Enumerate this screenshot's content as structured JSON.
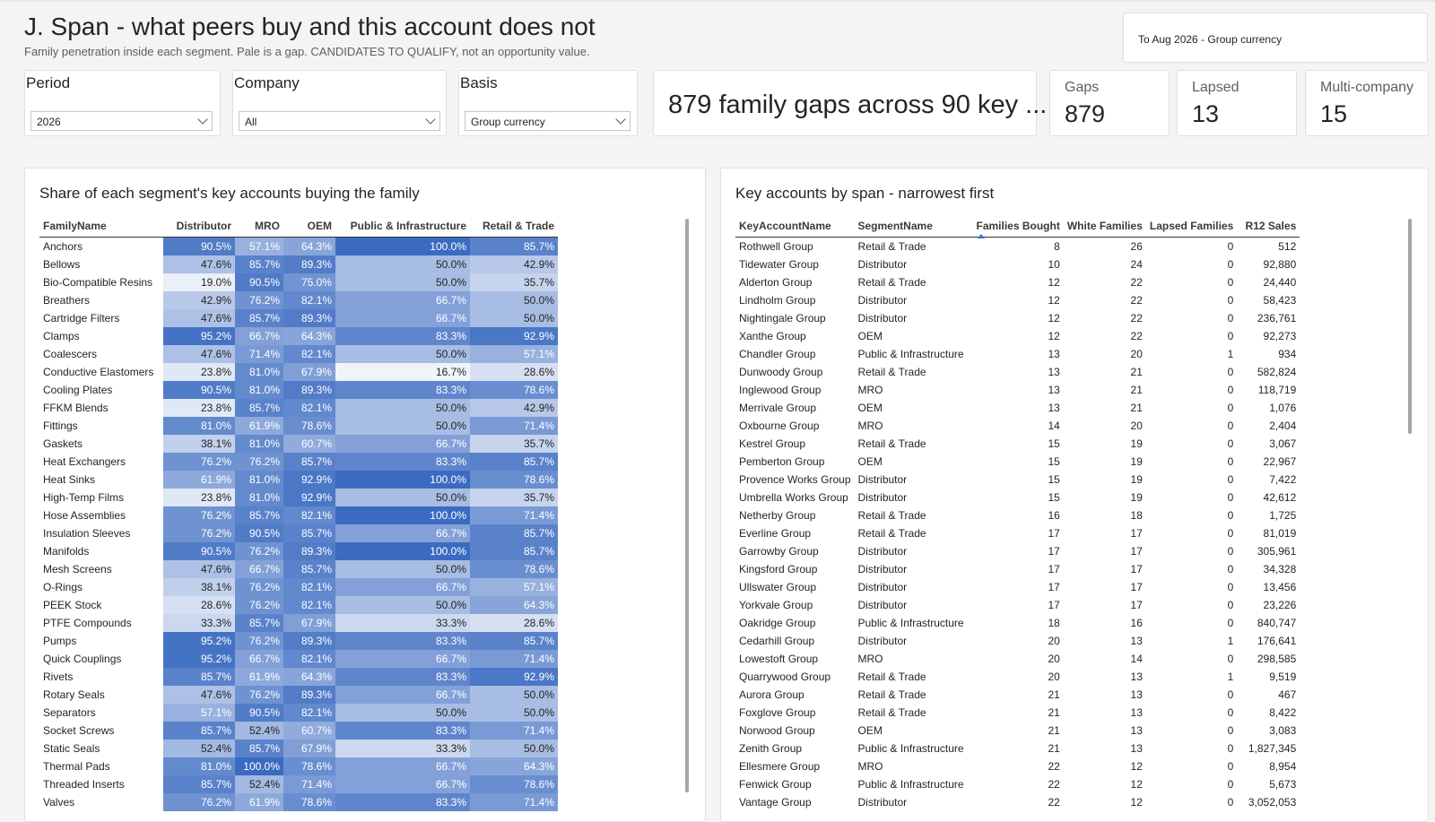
{
  "page": {
    "title": "J. Span - what peers buy and this account does not",
    "subtitle": "Family penetration inside each segment. Pale is a gap. CANDIDATES TO QUALIFY, not an opportunity value.",
    "period_info": "To Aug 2026 - Group currency"
  },
  "slicers": {
    "period": {
      "label": "Period",
      "value": "2026"
    },
    "company": {
      "label": "Company",
      "value": "All"
    },
    "basis": {
      "label": "Basis",
      "value": "Group currency"
    }
  },
  "headline": "879 family gaps across 90 key ...",
  "kpis": {
    "gaps": {
      "label": "Gaps",
      "value": "879"
    },
    "lapsed": {
      "label": "Lapsed",
      "value": "13"
    },
    "multi": {
      "label": "Multi-company",
      "value": "15"
    }
  },
  "heatmap": {
    "title": "Share of each segment's key accounts buying the family",
    "columns": [
      "FamilyName",
      "Distributor",
      "MRO",
      "OEM",
      "Public & Infrastructure",
      "Retail & Trade"
    ],
    "rows": [
      [
        "Anchors",
        "90.5%",
        "57.1%",
        "64.3%",
        "100.0%",
        "85.7%"
      ],
      [
        "Bellows",
        "47.6%",
        "85.7%",
        "89.3%",
        "50.0%",
        "42.9%"
      ],
      [
        "Bio-Compatible Resins",
        "19.0%",
        "90.5%",
        "75.0%",
        "50.0%",
        "35.7%"
      ],
      [
        "Breathers",
        "42.9%",
        "76.2%",
        "82.1%",
        "66.7%",
        "50.0%"
      ],
      [
        "Cartridge Filters",
        "47.6%",
        "85.7%",
        "89.3%",
        "66.7%",
        "50.0%"
      ],
      [
        "Clamps",
        "95.2%",
        "66.7%",
        "64.3%",
        "83.3%",
        "92.9%"
      ],
      [
        "Coalescers",
        "47.6%",
        "71.4%",
        "82.1%",
        "50.0%",
        "57.1%"
      ],
      [
        "Conductive Elastomers",
        "23.8%",
        "81.0%",
        "67.9%",
        "16.7%",
        "28.6%"
      ],
      [
        "Cooling Plates",
        "90.5%",
        "81.0%",
        "89.3%",
        "83.3%",
        "78.6%"
      ],
      [
        "FFKM Blends",
        "23.8%",
        "85.7%",
        "82.1%",
        "50.0%",
        "42.9%"
      ],
      [
        "Fittings",
        "81.0%",
        "61.9%",
        "78.6%",
        "50.0%",
        "71.4%"
      ],
      [
        "Gaskets",
        "38.1%",
        "81.0%",
        "60.7%",
        "66.7%",
        "35.7%"
      ],
      [
        "Heat Exchangers",
        "76.2%",
        "76.2%",
        "85.7%",
        "83.3%",
        "85.7%"
      ],
      [
        "Heat Sinks",
        "61.9%",
        "81.0%",
        "92.9%",
        "100.0%",
        "78.6%"
      ],
      [
        "High-Temp Films",
        "23.8%",
        "81.0%",
        "92.9%",
        "50.0%",
        "35.7%"
      ],
      [
        "Hose Assemblies",
        "76.2%",
        "85.7%",
        "82.1%",
        "100.0%",
        "71.4%"
      ],
      [
        "Insulation Sleeves",
        "76.2%",
        "90.5%",
        "85.7%",
        "66.7%",
        "85.7%"
      ],
      [
        "Manifolds",
        "90.5%",
        "76.2%",
        "89.3%",
        "100.0%",
        "85.7%"
      ],
      [
        "Mesh Screens",
        "47.6%",
        "66.7%",
        "85.7%",
        "50.0%",
        "78.6%"
      ],
      [
        "O-Rings",
        "38.1%",
        "76.2%",
        "82.1%",
        "66.7%",
        "57.1%"
      ],
      [
        "PEEK Stock",
        "28.6%",
        "76.2%",
        "82.1%",
        "50.0%",
        "64.3%"
      ],
      [
        "PTFE Compounds",
        "33.3%",
        "85.7%",
        "67.9%",
        "33.3%",
        "28.6%"
      ],
      [
        "Pumps",
        "95.2%",
        "76.2%",
        "89.3%",
        "83.3%",
        "85.7%"
      ],
      [
        "Quick Couplings",
        "95.2%",
        "66.7%",
        "82.1%",
        "66.7%",
        "71.4%"
      ],
      [
        "Rivets",
        "85.7%",
        "61.9%",
        "64.3%",
        "83.3%",
        "92.9%"
      ],
      [
        "Rotary Seals",
        "47.6%",
        "76.2%",
        "89.3%",
        "66.7%",
        "50.0%"
      ],
      [
        "Separators",
        "57.1%",
        "90.5%",
        "82.1%",
        "50.0%",
        "50.0%"
      ],
      [
        "Socket Screws",
        "85.7%",
        "52.4%",
        "60.7%",
        "83.3%",
        "71.4%"
      ],
      [
        "Static Seals",
        "52.4%",
        "85.7%",
        "67.9%",
        "33.3%",
        "50.0%"
      ],
      [
        "Thermal Pads",
        "81.0%",
        "100.0%",
        "78.6%",
        "66.7%",
        "64.3%"
      ],
      [
        "Threaded Inserts",
        "85.7%",
        "52.4%",
        "71.4%",
        "66.7%",
        "78.6%"
      ],
      [
        "Valves",
        "76.2%",
        "61.9%",
        "78.6%",
        "83.3%",
        "71.4%"
      ]
    ]
  },
  "span_table": {
    "title": "Key accounts by span - narrowest first",
    "columns": [
      "KeyAccountName",
      "SegmentName",
      "Families Bought",
      "White Families",
      "Lapsed Families",
      "R12 Sales"
    ],
    "rows": [
      [
        "Rothwell Group",
        "Retail & Trade",
        "8",
        "26",
        "0",
        "512"
      ],
      [
        "Tidewater Group",
        "Distributor",
        "10",
        "24",
        "0",
        "92,880"
      ],
      [
        "Alderton Group",
        "Retail & Trade",
        "12",
        "22",
        "0",
        "24,440"
      ],
      [
        "Lindholm Group",
        "Distributor",
        "12",
        "22",
        "0",
        "58,423"
      ],
      [
        "Nightingale Group",
        "Distributor",
        "12",
        "22",
        "0",
        "236,761"
      ],
      [
        "Xanthe Group",
        "OEM",
        "12",
        "22",
        "0",
        "92,273"
      ],
      [
        "Chandler Group",
        "Public & Infrastructure",
        "13",
        "20",
        "1",
        "934"
      ],
      [
        "Dunwoody Group",
        "Retail & Trade",
        "13",
        "21",
        "0",
        "582,824"
      ],
      [
        "Inglewood Group",
        "MRO",
        "13",
        "21",
        "0",
        "118,719"
      ],
      [
        "Merrivale Group",
        "OEM",
        "13",
        "21",
        "0",
        "1,076"
      ],
      [
        "Oxbourne Group",
        "MRO",
        "14",
        "20",
        "0",
        "2,404"
      ],
      [
        "Kestrel Group",
        "Retail & Trade",
        "15",
        "19",
        "0",
        "3,067"
      ],
      [
        "Pemberton Group",
        "OEM",
        "15",
        "19",
        "0",
        "22,967"
      ],
      [
        "Provence Works Group",
        "Distributor",
        "15",
        "19",
        "0",
        "7,422"
      ],
      [
        "Umbrella Works Group",
        "Distributor",
        "15",
        "19",
        "0",
        "42,612"
      ],
      [
        "Netherby Group",
        "Retail & Trade",
        "16",
        "18",
        "0",
        "1,725"
      ],
      [
        "Everline Group",
        "Retail & Trade",
        "17",
        "17",
        "0",
        "81,019"
      ],
      [
        "Garrowby Group",
        "Distributor",
        "17",
        "17",
        "0",
        "305,961"
      ],
      [
        "Kingsford Group",
        "Distributor",
        "17",
        "17",
        "0",
        "34,328"
      ],
      [
        "Ullswater Group",
        "Distributor",
        "17",
        "17",
        "0",
        "13,456"
      ],
      [
        "Yorkvale Group",
        "Distributor",
        "17",
        "17",
        "0",
        "23,226"
      ],
      [
        "Oakridge Group",
        "Public & Infrastructure",
        "18",
        "16",
        "0",
        "840,747"
      ],
      [
        "Cedarhill Group",
        "Distributor",
        "20",
        "13",
        "1",
        "176,641"
      ],
      [
        "Lowestoft Group",
        "MRO",
        "20",
        "14",
        "0",
        "298,585"
      ],
      [
        "Quarrywood Group",
        "Retail & Trade",
        "20",
        "13",
        "1",
        "9,519"
      ],
      [
        "Aurora Group",
        "Retail & Trade",
        "21",
        "13",
        "0",
        "467"
      ],
      [
        "Foxglove Group",
        "Retail & Trade",
        "21",
        "13",
        "0",
        "8,422"
      ],
      [
        "Norwood Group",
        "OEM",
        "21",
        "13",
        "0",
        "3,083"
      ],
      [
        "Zenith Group",
        "Public & Infrastructure",
        "21",
        "13",
        "0",
        "1,827,345"
      ],
      [
        "Ellesmere Group",
        "MRO",
        "22",
        "12",
        "0",
        "8,954"
      ],
      [
        "Fenwick Group",
        "Public & Infrastructure",
        "22",
        "12",
        "0",
        "5,673"
      ],
      [
        "Vantage Group",
        "Distributor",
        "22",
        "12",
        "0",
        "3,052,053"
      ]
    ]
  },
  "colors": {
    "heat_low": "#f3f6fb",
    "heat_high": "#3b6bc1",
    "accent": "#3c6ecf"
  }
}
